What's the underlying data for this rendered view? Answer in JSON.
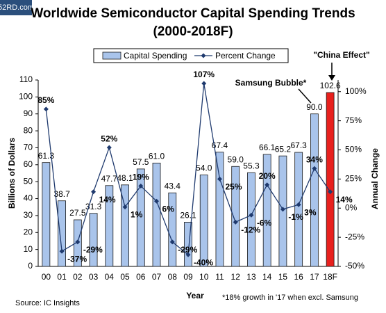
{
  "chart_data": {
    "type": "bar-line",
    "title": "Worldwide Semiconductor Capital Spending Trends",
    "subtitle": "(2000-2018F)",
    "watermark": "52RD.com",
    "categories": [
      "00",
      "01",
      "02",
      "03",
      "04",
      "05",
      "06",
      "07",
      "08",
      "09",
      "10",
      "11",
      "12",
      "13",
      "14",
      "15",
      "16",
      "17",
      "18F"
    ],
    "series": [
      {
        "name": "Capital Spending",
        "color": "#a9c4eb",
        "colors": [
          "#a9c4eb",
          "#a9c4eb",
          "#a9c4eb",
          "#a9c4eb",
          "#a9c4eb",
          "#a9c4eb",
          "#a9c4eb",
          "#a9c4eb",
          "#a9c4eb",
          "#a9c4eb",
          "#a9c4eb",
          "#a9c4eb",
          "#a9c4eb",
          "#a9c4eb",
          "#a9c4eb",
          "#a9c4eb",
          "#a9c4eb",
          "#a9c4eb",
          "#e8201d"
        ],
        "values": [
          61.3,
          38.7,
          27.5,
          31.3,
          47.7,
          48.1,
          57.5,
          61.0,
          43.4,
          26.1,
          54.0,
          67.4,
          59.0,
          55.3,
          66.1,
          65.2,
          67.3,
          90.0,
          102.6
        ],
        "value_labels": [
          "61.3",
          "38.7",
          "27.5",
          "31.3",
          "47.7",
          "48.1",
          "57.5",
          "61.0",
          "43.4",
          "26.1",
          "54.0",
          "67.4",
          "59.0",
          "55.3",
          "66.1",
          "65.2",
          "67.3",
          "90.0",
          "102.6"
        ]
      },
      {
        "name": "Percent Change",
        "color": "#1f3a6e",
        "axis": "y2",
        "values": [
          85,
          -37,
          -29,
          14,
          52,
          1,
          19,
          6,
          -29,
          -40,
          107,
          25,
          -12,
          -6,
          20,
          -1,
          3,
          34,
          14
        ],
        "value_labels": [
          "85%",
          "-37%",
          "-29%",
          "14%",
          "52%",
          "1%",
          "19%",
          "6%",
          "-29%",
          "-40%",
          "107%",
          "25%",
          "-12%",
          "-6%",
          "20%",
          "-1%",
          "3%",
          "34%",
          "14%"
        ]
      }
    ],
    "ylabel": "Billions of Dollars",
    "y2label": "Annual Change",
    "xlabel": "Year",
    "ylim": [
      0,
      110
    ],
    "yticks": [
      0,
      10,
      20,
      30,
      40,
      50,
      60,
      70,
      80,
      90,
      100,
      110
    ],
    "y2lim": [
      -50,
      110
    ],
    "y2ticks": [
      {
        "value": -50,
        "label": "-50%"
      },
      {
        "value": -25,
        "label": "-25%"
      },
      {
        "value": 0,
        "label": "0%"
      },
      {
        "value": 25,
        "label": "25%"
      },
      {
        "value": 50,
        "label": "50%"
      },
      {
        "value": 75,
        "label": "75%"
      },
      {
        "value": 100,
        "label": "100%"
      }
    ],
    "annotations": [
      "Samsung Bubble*",
      "\"China Effect\""
    ],
    "footnote": "*18% growth in '17 when excl. Samsung",
    "source": "Source: IC Insights"
  }
}
